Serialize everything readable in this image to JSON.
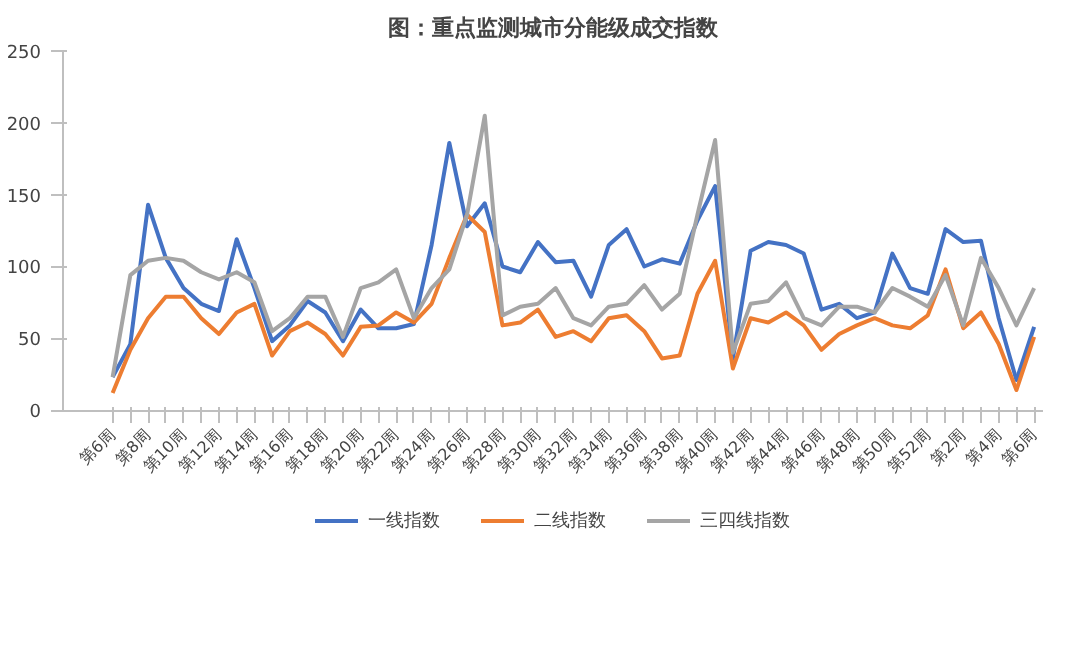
{
  "chart_data": {
    "type": "line",
    "title": "图：重点监测城市分能级成交指数",
    "categories": [
      "第6周",
      null,
      "第8周",
      null,
      "第10周",
      null,
      "第12周",
      null,
      "第14周",
      null,
      "第16周",
      null,
      "第18周",
      null,
      "第20周",
      null,
      "第22周",
      null,
      "第24周",
      null,
      "第26周",
      null,
      "第28周",
      null,
      "第30周",
      null,
      "第32周",
      null,
      "第34周",
      null,
      "第36周",
      null,
      "第38周",
      null,
      "第40周",
      null,
      "第42周",
      null,
      "第44周",
      null,
      "第46周",
      null,
      "第48周",
      null,
      "第50周",
      null,
      "第52周",
      null,
      "第2周",
      null,
      "第4周",
      null,
      "第6周"
    ],
    "series": [
      {
        "name": "一线指数",
        "color": "#4472c4",
        "values": [
          23,
          46,
          143,
          106,
          85,
          74,
          69,
          119,
          85,
          48,
          59,
          76,
          68,
          48,
          70,
          57,
          57,
          60,
          115,
          186,
          128,
          144,
          100,
          96,
          117,
          103,
          104,
          79,
          115,
          126,
          100,
          105,
          102,
          132,
          156,
          36,
          111,
          117,
          115,
          109,
          70,
          74,
          64,
          68,
          109,
          85,
          81,
          126,
          117,
          118,
          64,
          21,
          58
        ]
      },
      {
        "name": "二线指数",
        "color": "#ed7d31",
        "values": [
          12,
          42,
          64,
          79,
          79,
          64,
          53,
          68,
          74,
          38,
          55,
          61,
          53,
          38,
          58,
          59,
          68,
          61,
          74,
          106,
          136,
          124,
          59,
          61,
          70,
          51,
          55,
          48,
          64,
          66,
          55,
          36,
          38,
          81,
          104,
          29,
          64,
          61,
          68,
          59,
          42,
          53,
          59,
          64,
          59,
          57,
          66,
          98,
          57,
          68,
          46,
          14,
          51
        ]
      },
      {
        "name": "三四线指数",
        "color": "#a5a5a5",
        "values": [
          23,
          94,
          104,
          106,
          104,
          96,
          91,
          96,
          89,
          55,
          64,
          79,
          79,
          51,
          85,
          89,
          98,
          64,
          85,
          98,
          136,
          205,
          66,
          72,
          74,
          85,
          64,
          59,
          72,
          74,
          87,
          70,
          81,
          136,
          188,
          40,
          74,
          76,
          89,
          64,
          59,
          72,
          72,
          68,
          85,
          79,
          72,
          94,
          59,
          106,
          85,
          59,
          85
        ]
      }
    ],
    "ylim": [
      0,
      250
    ],
    "yticks": [
      0,
      50,
      100,
      150,
      200,
      250
    ],
    "grid": false,
    "legend": "bottom",
    "marker": "none",
    "line_style": "solid"
  }
}
